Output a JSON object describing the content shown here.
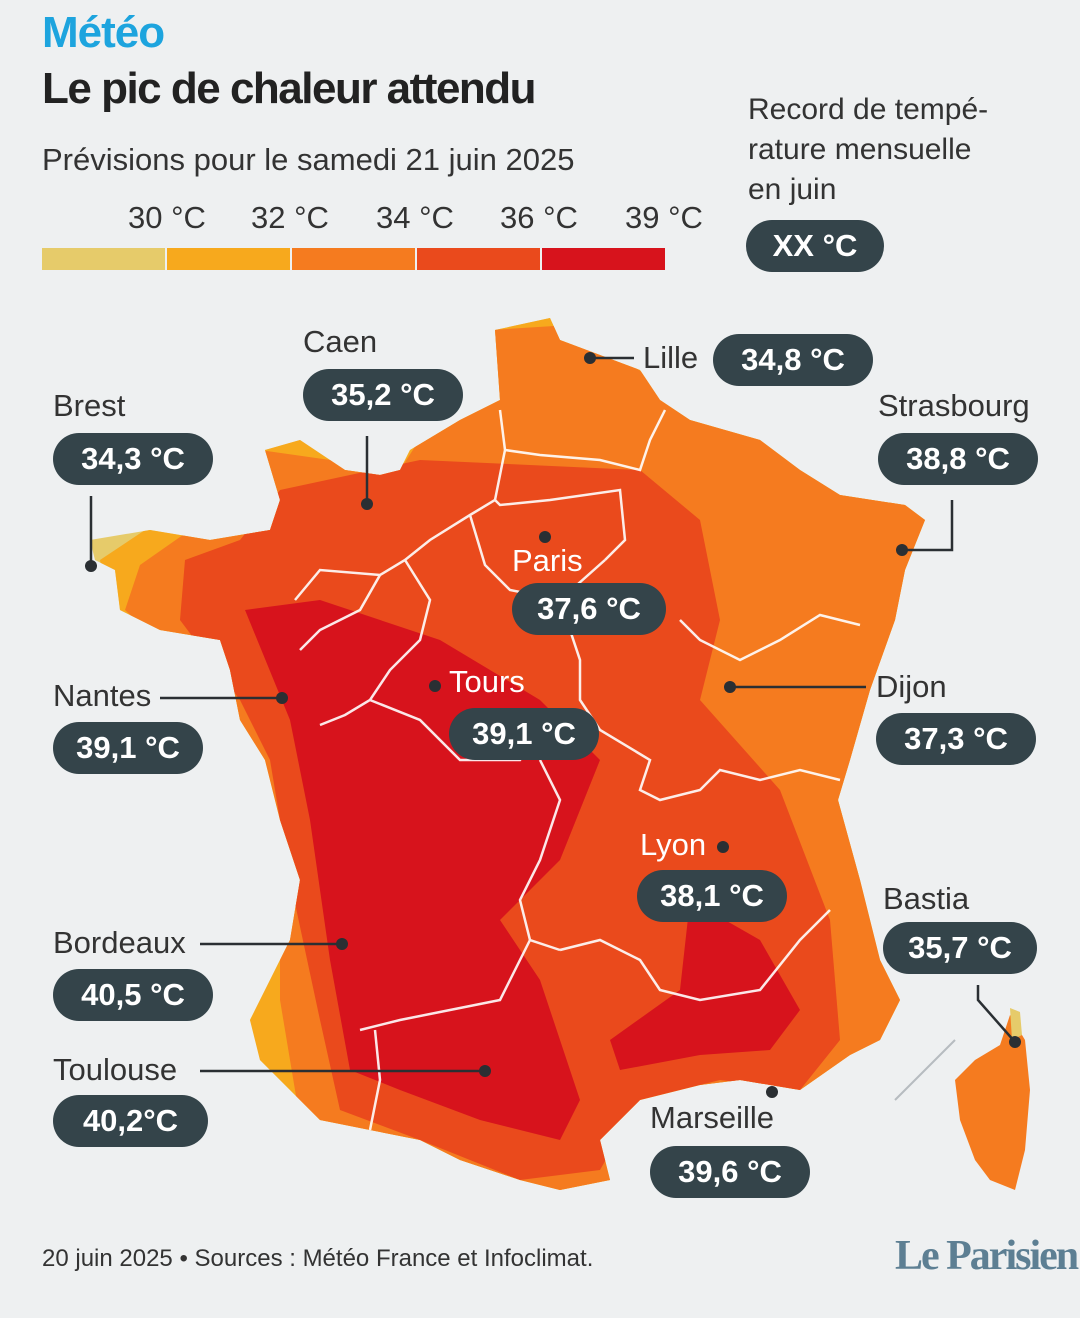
{
  "header": {
    "kicker": "Météo",
    "title": "Le pic de chaleur attendu",
    "subtitle": "Prévisions pour le samedi 21 juin 2025"
  },
  "legend": {
    "ticks": [
      "30 °C",
      "32 °C",
      "34 °C",
      "36 °C",
      "39 °C"
    ],
    "colors": [
      "#e6cb6a",
      "#f7a91d",
      "#f57b1f",
      "#ea4a1c",
      "#d7131c"
    ],
    "record_title": "Record de tempé-rature mensuelle en juin",
    "record_title_lines": [
      "Record de tempé-",
      "rature mensuelle",
      "en juin"
    ],
    "record_value": "XX °C"
  },
  "cities": [
    {
      "name": "Brest",
      "temp": "34,3 °C"
    },
    {
      "name": "Caen",
      "temp": "35,2 °C"
    },
    {
      "name": "Lille",
      "temp": "34,8 °C"
    },
    {
      "name": "Strasbourg",
      "temp": "38,8 °C"
    },
    {
      "name": "Paris",
      "temp": "37,6 °C"
    },
    {
      "name": "Tours",
      "temp": "39,1 °C"
    },
    {
      "name": "Nantes",
      "temp": "39,1 °C"
    },
    {
      "name": "Dijon",
      "temp": "37,3 °C"
    },
    {
      "name": "Lyon",
      "temp": "38,1 °C"
    },
    {
      "name": "Bastia",
      "temp": "35,7 °C"
    },
    {
      "name": "Bordeaux",
      "temp": "40,5 °C"
    },
    {
      "name": "Toulouse",
      "temp": "40,2°C"
    },
    {
      "name": "Marseille",
      "temp": "39,6 °C"
    }
  ],
  "footer": {
    "source": "20 juin 2025 • Sources : Météo France et Infoclimat.",
    "logo": "Le Parisien"
  }
}
